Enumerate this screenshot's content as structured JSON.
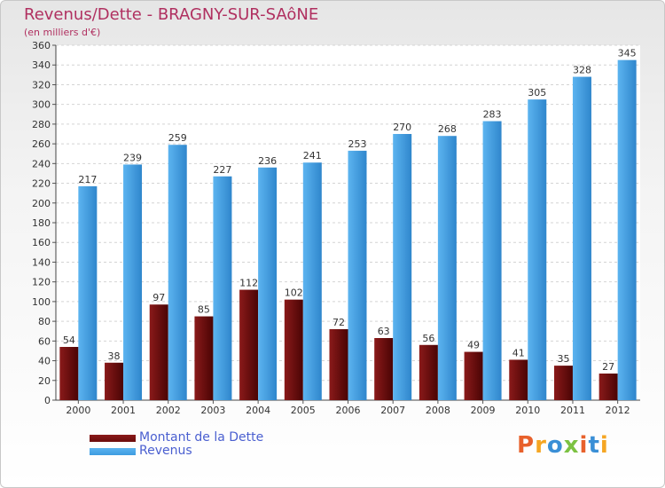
{
  "chart_data": {
    "type": "bar",
    "title": "Revenus/Dette - BRAGNY-SUR-SAôNE",
    "subtitle": "(en milliers d'€)",
    "xlabel": "",
    "ylabel": "",
    "ylim": [
      0,
      360
    ],
    "yticks": [
      0,
      20,
      40,
      60,
      80,
      100,
      120,
      140,
      160,
      180,
      200,
      220,
      240,
      260,
      280,
      300,
      320,
      340,
      360
    ],
    "grid": true,
    "categories": [
      "2000",
      "2001",
      "2002",
      "2003",
      "2004",
      "2005",
      "2006",
      "2007",
      "2008",
      "2009",
      "2010",
      "2011",
      "2012"
    ],
    "series": [
      {
        "name": "Montant de la Dette",
        "color": "#6b0b0b",
        "values": [
          54,
          38,
          97,
          85,
          112,
          102,
          72,
          63,
          56,
          49,
          41,
          35,
          27
        ]
      },
      {
        "name": "Revenus",
        "color": "#3d9be0",
        "values": [
          217,
          239,
          259,
          227,
          236,
          241,
          253,
          270,
          268,
          283,
          305,
          328,
          345
        ]
      }
    ],
    "legend_position": "bottom-left"
  },
  "logo": {
    "text": "Proxiti",
    "colors": [
      "#e8612c",
      "#f5a623",
      "#3a8fd6",
      "#7cc242",
      "#e8612c",
      "#3a8fd6",
      "#f5a623"
    ]
  }
}
